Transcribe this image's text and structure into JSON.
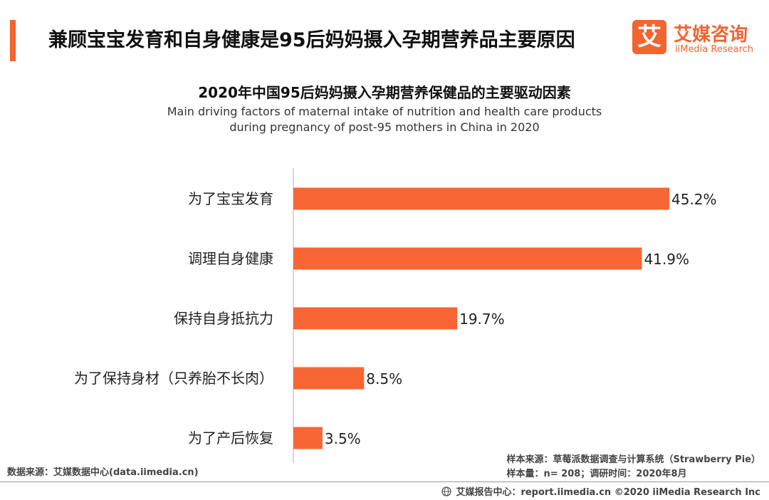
{
  "header": {
    "title": "兼顾宝宝发育和自身健康是95后妈妈摄入孕期营养品主要原因"
  },
  "logo": {
    "mark": "艾",
    "name_cn": "艾媒咨询",
    "name_en": "iiMedia Research"
  },
  "chart_data": {
    "type": "bar",
    "orientation": "horizontal",
    "title": "2020年中国95后妈妈摄入孕期营养保健品的主要驱动因素",
    "subtitle": [
      "Main driving factors of maternal intake of nutrition and health care products",
      "during pregnancy of post-95 mothers in China in 2020"
    ],
    "categories": [
      "为了宝宝发育",
      "调理自身健康",
      "保持自身抵抗力",
      "为了保持身材（只养胎不长肉）",
      "为了产后恢复"
    ],
    "values": [
      45.2,
      41.9,
      19.7,
      8.5,
      3.5
    ],
    "value_labels": [
      "45.2%",
      "41.9%",
      "19.7%",
      "8.5%",
      "3.5%"
    ],
    "xlim": [
      0,
      45.2
    ],
    "bar_color": "#f76634",
    "grid": false
  },
  "source": {
    "data_source": "数据来源：艾媒数据中心(data.iimedia.cn)",
    "sample_source": "样本来源：草莓派数据调查与计算系统（Strawberry Pie）",
    "sample_size": "样本量：n= 208；调研时间：2020年8月"
  },
  "footer": {
    "icon": "globe-icon",
    "text": "艾媒报告中心：report.iimedia.cn   ©2020  iiMedia Research  Inc"
  }
}
